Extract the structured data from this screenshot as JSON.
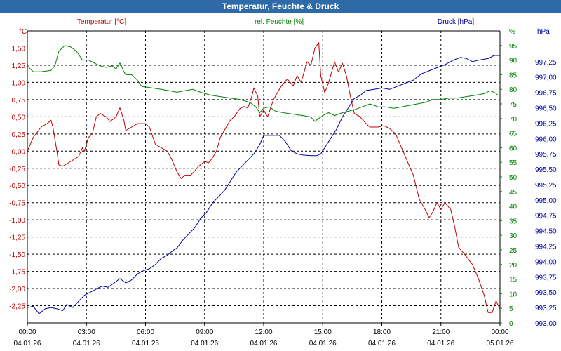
{
  "window": {
    "title": "Temperatur, Feuchte & Druck"
  },
  "colors": {
    "temperature": "#c00000",
    "humidity": "#008000",
    "pressure": "#0000a0",
    "title_bar": "#2e6aa8"
  },
  "chart_data": {
    "type": "line",
    "title": "Temperatur, Feuchte & Druck",
    "x_ticks": [
      {
        "time": "00:00",
        "date": "04.01.26"
      },
      {
        "time": "03:00",
        "date": "04.01.26"
      },
      {
        "time": "06:00",
        "date": "04.01.26"
      },
      {
        "time": "09:00",
        "date": "04.01.26"
      },
      {
        "time": "12:00",
        "date": "04.01.26"
      },
      {
        "time": "15:00",
        "date": "04.01.26"
      },
      {
        "time": "18:00",
        "date": "04.01.26"
      },
      {
        "time": "21:00",
        "date": "04.01.26"
      },
      {
        "time": "00:00",
        "date": "05.01.26"
      }
    ],
    "x_range_hours": [
      0,
      24
    ],
    "grid": true,
    "axes": {
      "temperature": {
        "label": "Temperatur [°C]",
        "unit": "°C",
        "side": "left",
        "range": [
          -2.5,
          1.75
        ],
        "ticks": [
          "1,50",
          "1,25",
          "1,00",
          "0,75",
          "0,50",
          "0,25",
          "0,00",
          "-0,25",
          "-0,50",
          "-0,75",
          "-1,00",
          "-1,25",
          "-1,50",
          "-1,75",
          "-2,00",
          "-2,25"
        ],
        "tick_values": [
          1.5,
          1.25,
          1.0,
          0.75,
          0.5,
          0.25,
          0.0,
          -0.25,
          -0.5,
          -0.75,
          -1.0,
          -1.25,
          -1.5,
          -1.75,
          -2.0,
          -2.25
        ]
      },
      "humidity": {
        "label": "rel. Feuchte [%]",
        "unit": "%",
        "side": "inner-right",
        "range": [
          0,
          100
        ],
        "ticks": [
          "95",
          "90",
          "85",
          "80",
          "75",
          "70",
          "65",
          "60",
          "55",
          "50",
          "45",
          "40",
          "35",
          "30",
          "25",
          "20",
          "15",
          "10",
          "5",
          "0"
        ],
        "tick_values": [
          95,
          90,
          85,
          80,
          75,
          70,
          65,
          60,
          55,
          50,
          45,
          40,
          35,
          30,
          25,
          20,
          15,
          10,
          5,
          0
        ]
      },
      "pressure": {
        "label": "Druck [hPa]",
        "unit": "hPa",
        "side": "right",
        "range": [
          993.0,
          997.75
        ],
        "ticks": [
          "997,25",
          "997,00",
          "996,75",
          "996,50",
          "996,25",
          "996,00",
          "995,75",
          "995,50",
          "995,25",
          "995,00",
          "994,75",
          "994,50",
          "994,25",
          "994,00",
          "993,75",
          "993,50",
          "993,25",
          "993,00"
        ],
        "tick_values": [
          997.25,
          997.0,
          996.75,
          996.5,
          996.25,
          996.0,
          995.75,
          995.5,
          995.25,
          995.0,
          994.75,
          994.5,
          994.25,
          994.0,
          993.75,
          993.5,
          993.25,
          993.0
        ]
      }
    },
    "series": [
      {
        "name": "Temperatur [°C]",
        "axis": "temperature",
        "color": "#c00000",
        "points": [
          [
            0,
            0.0
          ],
          [
            0.3,
            0.2
          ],
          [
            0.7,
            0.35
          ],
          [
            1.0,
            0.4
          ],
          [
            1.2,
            0.45
          ],
          [
            1.3,
            0.35
          ],
          [
            1.5,
            0.0
          ],
          [
            1.6,
            -0.2
          ],
          [
            1.8,
            -0.22
          ],
          [
            2.2,
            -0.15
          ],
          [
            2.6,
            -0.08
          ],
          [
            2.8,
            0.05
          ],
          [
            2.9,
            0.0
          ],
          [
            3.1,
            0.2
          ],
          [
            3.3,
            0.25
          ],
          [
            3.5,
            0.5
          ],
          [
            3.7,
            0.55
          ],
          [
            4.0,
            0.5
          ],
          [
            4.2,
            0.43
          ],
          [
            4.5,
            0.5
          ],
          [
            4.7,
            0.63
          ],
          [
            4.9,
            0.45
          ],
          [
            5.0,
            0.3
          ],
          [
            5.3,
            0.35
          ],
          [
            5.6,
            0.4
          ],
          [
            6.0,
            0.4
          ],
          [
            6.2,
            0.35
          ],
          [
            6.5,
            0.1
          ],
          [
            6.8,
            0.05
          ],
          [
            7.1,
            0.0
          ],
          [
            7.3,
            -0.1
          ],
          [
            7.6,
            -0.3
          ],
          [
            7.8,
            -0.4
          ],
          [
            8.0,
            -0.35
          ],
          [
            8.3,
            -0.35
          ],
          [
            8.7,
            -0.22
          ],
          [
            9.0,
            -0.15
          ],
          [
            9.2,
            -0.17
          ],
          [
            9.4,
            -0.1
          ],
          [
            9.6,
            0.0
          ],
          [
            9.8,
            0.2
          ],
          [
            10.0,
            0.3
          ],
          [
            10.3,
            0.45
          ],
          [
            10.5,
            0.5
          ],
          [
            10.8,
            0.62
          ],
          [
            11.0,
            0.65
          ],
          [
            11.2,
            0.63
          ],
          [
            11.4,
            0.8
          ],
          [
            11.5,
            0.92
          ],
          [
            11.7,
            0.8
          ],
          [
            11.8,
            0.5
          ],
          [
            12.0,
            0.6
          ],
          [
            12.2,
            0.5
          ],
          [
            12.5,
            0.75
          ],
          [
            12.9,
            0.95
          ],
          [
            13.2,
            1.05
          ],
          [
            13.5,
            0.95
          ],
          [
            13.7,
            1.1
          ],
          [
            13.9,
            1.0
          ],
          [
            14.2,
            1.3
          ],
          [
            14.4,
            1.25
          ],
          [
            14.6,
            1.5
          ],
          [
            14.8,
            1.58
          ],
          [
            14.9,
            1.1
          ],
          [
            15.1,
            0.85
          ],
          [
            15.3,
            1.0
          ],
          [
            15.6,
            1.3
          ],
          [
            15.8,
            1.15
          ],
          [
            16.0,
            1.28
          ],
          [
            16.2,
            1.1
          ],
          [
            16.4,
            0.8
          ],
          [
            16.6,
            0.55
          ],
          [
            16.9,
            0.5
          ],
          [
            17.2,
            0.4
          ],
          [
            17.4,
            0.35
          ],
          [
            17.8,
            0.35
          ],
          [
            18.1,
            0.37
          ],
          [
            18.4,
            0.33
          ],
          [
            18.7,
            0.25
          ],
          [
            19.0,
            0.05
          ],
          [
            19.3,
            -0.15
          ],
          [
            19.6,
            -0.35
          ],
          [
            19.9,
            -0.7
          ],
          [
            20.2,
            -0.85
          ],
          [
            20.4,
            -0.97
          ],
          [
            20.6,
            -0.88
          ],
          [
            20.8,
            -0.75
          ],
          [
            21.0,
            -0.85
          ],
          [
            21.2,
            -0.75
          ],
          [
            21.5,
            -0.85
          ],
          [
            21.7,
            -1.1
          ],
          [
            21.9,
            -1.4
          ],
          [
            22.2,
            -1.5
          ],
          [
            22.6,
            -1.65
          ],
          [
            22.9,
            -1.85
          ],
          [
            23.2,
            -2.1
          ],
          [
            23.4,
            -2.35
          ],
          [
            23.6,
            -2.35
          ],
          [
            23.8,
            -2.18
          ],
          [
            24.0,
            -2.3
          ]
        ]
      },
      {
        "name": "rel. Feuchte [%]",
        "axis": "humidity",
        "color": "#008000",
        "points": [
          [
            0,
            88.0
          ],
          [
            0.3,
            86.0
          ],
          [
            0.7,
            86.0
          ],
          [
            1.2,
            86.5
          ],
          [
            1.4,
            88.0
          ],
          [
            1.6,
            93.0
          ],
          [
            1.9,
            95.0
          ],
          [
            2.2,
            94.5
          ],
          [
            2.5,
            93.0
          ],
          [
            2.8,
            90.0
          ],
          [
            3.1,
            90.0
          ],
          [
            3.4,
            89.0
          ],
          [
            3.7,
            88.0
          ],
          [
            4.0,
            87.5
          ],
          [
            4.3,
            88.0
          ],
          [
            4.5,
            87.0
          ],
          [
            4.7,
            89.0
          ],
          [
            4.9,
            86.0
          ],
          [
            5.0,
            85.0
          ],
          [
            5.3,
            85.0
          ],
          [
            5.6,
            83.0
          ],
          [
            5.8,
            81.0
          ],
          [
            6.3,
            80.5
          ],
          [
            6.8,
            80.0
          ],
          [
            7.2,
            79.5
          ],
          [
            7.6,
            79.0
          ],
          [
            8.0,
            79.5
          ],
          [
            8.4,
            80.0
          ],
          [
            8.8,
            79.0
          ],
          [
            9.3,
            78.0
          ],
          [
            9.8,
            77.5
          ],
          [
            10.3,
            77.0
          ],
          [
            10.8,
            76.5
          ],
          [
            11.3,
            75.5
          ],
          [
            11.6,
            74.0
          ],
          [
            11.8,
            72.0
          ],
          [
            12.0,
            73.5
          ],
          [
            12.3,
            74.0
          ],
          [
            12.6,
            72.5
          ],
          [
            13.0,
            72.0
          ],
          [
            13.5,
            71.5
          ],
          [
            14.0,
            71.0
          ],
          [
            14.4,
            70.5
          ],
          [
            14.6,
            69.0
          ],
          [
            14.8,
            70.0
          ],
          [
            15.0,
            71.0
          ],
          [
            15.3,
            72.0
          ],
          [
            15.6,
            71.0
          ],
          [
            16.0,
            72.0
          ],
          [
            16.3,
            72.5
          ],
          [
            16.6,
            73.0
          ],
          [
            17.0,
            74.0
          ],
          [
            17.4,
            75.0
          ],
          [
            17.8,
            74.0
          ],
          [
            18.2,
            74.0
          ],
          [
            18.6,
            73.5
          ],
          [
            19.0,
            74.0
          ],
          [
            19.4,
            74.5
          ],
          [
            19.8,
            75.0
          ],
          [
            20.2,
            75.5
          ],
          [
            20.6,
            76.5
          ],
          [
            21.0,
            76.5
          ],
          [
            21.4,
            77.0
          ],
          [
            21.8,
            77.0
          ],
          [
            22.3,
            77.5
          ],
          [
            22.8,
            78.0
          ],
          [
            23.2,
            78.5
          ],
          [
            23.5,
            79.5
          ],
          [
            23.7,
            79.0
          ],
          [
            23.9,
            78.0
          ],
          [
            24.0,
            78.0
          ]
        ]
      },
      {
        "name": "Druck [hPa]",
        "axis": "pressure",
        "color": "#0000a0",
        "points": [
          [
            0,
            993.25
          ],
          [
            0.3,
            993.27
          ],
          [
            0.6,
            993.15
          ],
          [
            0.9,
            993.23
          ],
          [
            1.2,
            993.25
          ],
          [
            1.5,
            993.23
          ],
          [
            1.8,
            993.2
          ],
          [
            2.0,
            993.3
          ],
          [
            2.3,
            993.25
          ],
          [
            2.6,
            993.35
          ],
          [
            2.9,
            993.45
          ],
          [
            3.2,
            993.5
          ],
          [
            3.5,
            993.55
          ],
          [
            3.8,
            993.6
          ],
          [
            4.1,
            993.58
          ],
          [
            4.4,
            993.65
          ],
          [
            4.7,
            993.72
          ],
          [
            5.0,
            993.65
          ],
          [
            5.3,
            993.7
          ],
          [
            5.6,
            993.8
          ],
          [
            5.9,
            993.85
          ],
          [
            6.2,
            993.88
          ],
          [
            6.5,
            993.95
          ],
          [
            6.8,
            994.05
          ],
          [
            7.1,
            994.1
          ],
          [
            7.4,
            994.18
          ],
          [
            7.6,
            994.22
          ],
          [
            7.9,
            994.35
          ],
          [
            8.2,
            994.45
          ],
          [
            8.5,
            994.55
          ],
          [
            8.8,
            994.7
          ],
          [
            9.1,
            994.8
          ],
          [
            9.4,
            994.95
          ],
          [
            9.7,
            995.05
          ],
          [
            10.0,
            995.15
          ],
          [
            10.3,
            995.3
          ],
          [
            10.6,
            995.45
          ],
          [
            10.9,
            995.55
          ],
          [
            11.2,
            995.65
          ],
          [
            11.5,
            995.75
          ],
          [
            11.8,
            995.9
          ],
          [
            12.0,
            996.05
          ],
          [
            12.4,
            996.05
          ],
          [
            12.8,
            996.05
          ],
          [
            13.1,
            995.95
          ],
          [
            13.4,
            995.8
          ],
          [
            13.7,
            995.75
          ],
          [
            14.0,
            995.73
          ],
          [
            14.4,
            995.72
          ],
          [
            14.7,
            995.72
          ],
          [
            14.9,
            995.75
          ],
          [
            15.1,
            995.85
          ],
          [
            15.4,
            996.0
          ],
          [
            15.7,
            996.15
          ],
          [
            16.0,
            996.35
          ],
          [
            16.3,
            996.5
          ],
          [
            16.6,
            996.65
          ],
          [
            16.9,
            996.7
          ],
          [
            17.2,
            996.78
          ],
          [
            17.6,
            996.8
          ],
          [
            18.0,
            996.82
          ],
          [
            18.4,
            996.8
          ],
          [
            18.8,
            996.85
          ],
          [
            19.2,
            996.9
          ],
          [
            19.6,
            996.95
          ],
          [
            20.0,
            997.05
          ],
          [
            20.4,
            997.1
          ],
          [
            20.8,
            997.15
          ],
          [
            21.2,
            997.2
          ],
          [
            21.6,
            997.27
          ],
          [
            22.0,
            997.32
          ],
          [
            22.3,
            997.3
          ],
          [
            22.6,
            997.25
          ],
          [
            23.0,
            997.28
          ],
          [
            23.4,
            997.3
          ],
          [
            23.7,
            997.35
          ],
          [
            24.0,
            997.35
          ]
        ]
      }
    ]
  }
}
